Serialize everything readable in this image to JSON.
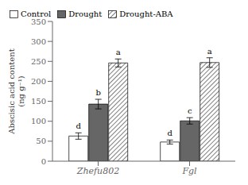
{
  "chart_data": {
    "type": "bar",
    "categories": [
      "Zhefu802",
      "Fgl"
    ],
    "series": [
      {
        "name": "Control",
        "color": "white",
        "values": [
          63,
          48
        ],
        "errors": [
          8,
          5
        ],
        "annotations": [
          "d",
          "d"
        ]
      },
      {
        "name": "Drought",
        "color": "#666666",
        "values": [
          143,
          101
        ],
        "errors": [
          12,
          8
        ],
        "annotations": [
          "b",
          "c"
        ]
      },
      {
        "name": "Drought-ABA",
        "color": "white",
        "values": [
          246,
          247
        ],
        "errors": [
          10,
          12
        ],
        "annotations": [
          "a",
          "a"
        ]
      }
    ],
    "ylabel": "Abscisic acid content\n(ng g⁻¹)",
    "ylim": [
      0,
      350
    ],
    "yticks": [
      0,
      50,
      100,
      150,
      200,
      250,
      300,
      350
    ],
    "legend": "upper left",
    "grid": false
  }
}
